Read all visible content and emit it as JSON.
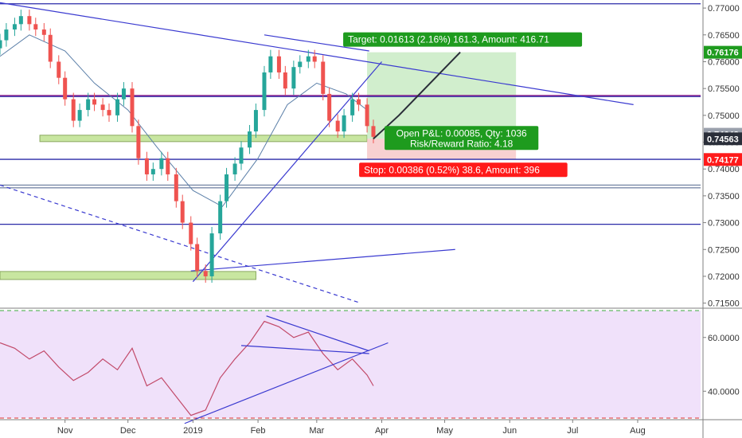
{
  "chart_data": [
    {
      "type": "candlestick",
      "title": "",
      "xlim": [
        "2018-10-01",
        "2019-08-31"
      ],
      "ylim": [
        0.7145,
        0.7715
      ],
      "price_axis_ticks": [
        "0.77000",
        "0.76500",
        "0.76000",
        "0.75500",
        "0.75000",
        "0.74500",
        "0.74000",
        "0.73500",
        "0.73000",
        "0.72500",
        "0.72000",
        "0.71500"
      ],
      "price_axis_values": [
        0.77,
        0.765,
        0.76,
        0.755,
        0.75,
        0.745,
        0.74,
        0.735,
        0.73,
        0.725,
        0.72,
        0.715
      ],
      "time_axis_ticks": [
        "Nov",
        "Dec",
        "2019",
        "Feb",
        "Mar",
        "Apr",
        "May",
        "Jun",
        "Jul",
        "Aug"
      ],
      "time_axis_dates": [
        "2018-11-01",
        "2018-12-01",
        "2019-01-01",
        "2019-02-01",
        "2019-03-01",
        "2019-04-01",
        "2019-05-01",
        "2019-06-01",
        "2019-07-01",
        "2019-08-01"
      ],
      "price_labels": [
        {
          "text": "0.76176",
          "value": 0.76176,
          "color": "#1e9b1e"
        },
        {
          "text": "0.74648",
          "value": 0.74648,
          "color": "#9aa0ac"
        },
        {
          "text": "0.74563",
          "value": 0.74563,
          "color": "#2a2e39"
        },
        {
          "text": "0.74177",
          "value": 0.74177,
          "color": "#ff1a1a"
        }
      ],
      "close_series": [
        [
          "2018-10-01",
          0.764
        ],
        [
          "2018-10-04",
          0.766
        ],
        [
          "2018-10-08",
          0.767
        ],
        [
          "2018-10-11",
          0.7685
        ],
        [
          "2018-10-15",
          0.767
        ],
        [
          "2018-10-18",
          0.766
        ],
        [
          "2018-10-22",
          0.765
        ],
        [
          "2018-10-25",
          0.76
        ],
        [
          "2018-10-29",
          0.757
        ],
        [
          "2018-11-01",
          0.753
        ],
        [
          "2018-11-05",
          0.749
        ],
        [
          "2018-11-08",
          0.751
        ],
        [
          "2018-11-12",
          0.753
        ],
        [
          "2018-11-15",
          0.752
        ],
        [
          "2018-11-19",
          0.751
        ],
        [
          "2018-11-22",
          0.75
        ],
        [
          "2018-11-26",
          0.753
        ],
        [
          "2018-11-29",
          0.755
        ],
        [
          "2018-12-03",
          0.748
        ],
        [
          "2018-12-06",
          0.742
        ],
        [
          "2018-12-10",
          0.739
        ],
        [
          "2018-12-13",
          0.74
        ],
        [
          "2018-12-17",
          0.742
        ],
        [
          "2018-12-20",
          0.739
        ],
        [
          "2018-12-24",
          0.734
        ],
        [
          "2018-12-27",
          0.73
        ],
        [
          "2018-12-31",
          0.726
        ],
        [
          "2019-01-03",
          0.721
        ],
        [
          "2019-01-07",
          0.72
        ],
        [
          "2019-01-10",
          0.728
        ],
        [
          "2019-01-14",
          0.734
        ],
        [
          "2019-01-17",
          0.739
        ],
        [
          "2019-01-21",
          0.741
        ],
        [
          "2019-01-24",
          0.744
        ],
        [
          "2019-01-28",
          0.747
        ],
        [
          "2019-01-31",
          0.751
        ],
        [
          "2019-02-04",
          0.758
        ],
        [
          "2019-02-07",
          0.761
        ],
        [
          "2019-02-11",
          0.758
        ],
        [
          "2019-02-14",
          0.755
        ],
        [
          "2019-02-18",
          0.759
        ],
        [
          "2019-02-21",
          0.76
        ],
        [
          "2019-02-25",
          0.761
        ],
        [
          "2019-02-28",
          0.76
        ],
        [
          "2019-03-04",
          0.754
        ],
        [
          "2019-03-07",
          0.749
        ],
        [
          "2019-03-11",
          0.747
        ],
        [
          "2019-03-14",
          0.75
        ],
        [
          "2019-03-18",
          0.753
        ],
        [
          "2019-03-21",
          0.752
        ],
        [
          "2019-03-25",
          0.748
        ],
        [
          "2019-03-28",
          0.746
        ]
      ],
      "moving_average": [
        [
          "2018-10-01",
          0.761
        ],
        [
          "2018-10-15",
          0.765
        ],
        [
          "2018-11-01",
          0.762
        ],
        [
          "2018-11-15",
          0.756
        ],
        [
          "2018-12-01",
          0.751
        ],
        [
          "2018-12-15",
          0.744
        ],
        [
          "2019-01-01",
          0.736
        ],
        [
          "2019-01-15",
          0.733
        ],
        [
          "2019-02-01",
          0.742
        ],
        [
          "2019-02-15",
          0.752
        ],
        [
          "2019-03-01",
          0.756
        ],
        [
          "2019-03-15",
          0.754
        ],
        [
          "2019-03-25",
          0.751
        ]
      ],
      "position": {
        "target_label": "Target: 0.01613 (2.16%) 161.3, Amount: 416.71",
        "open_label": "Open P&L: 0.00085, Qty: 1036",
        "ratio_label": "Risk/Reward Ratio: 4.18",
        "stop_label": "Stop: 0.00386 (0.52%) 38.6, Amount: 396",
        "entry": 0.74563,
        "target": 0.76176,
        "stop": 0.74177,
        "start": "2019-03-25",
        "end": "2019-06-04"
      },
      "horizontal_levels": [
        {
          "value": 0.7708,
          "color": "#2a2aa8"
        },
        {
          "value": 0.7535,
          "color": "#2a2aa8"
        },
        {
          "value": 0.7537,
          "color": "#8a1a8a"
        },
        {
          "value": 0.7418,
          "color": "#2a2aa8"
        },
        {
          "value": 0.737,
          "color": "#7a8aa8"
        },
        {
          "value": 0.7365,
          "color": "#7a8aa8"
        },
        {
          "value": 0.7297,
          "color": "#2a2aa8"
        }
      ],
      "trend_lines": [
        {
          "from": [
            "2018-10-01",
            0.771
          ],
          "to": [
            "2019-07-30",
            0.752
          ],
          "color": "#3a3ad0",
          "dashed": false
        },
        {
          "from": [
            "2019-01-01",
            0.719
          ],
          "to": [
            "2019-04-01",
            0.76
          ],
          "color": "#3a3ad0",
          "dashed": false
        },
        {
          "from": [
            "2018-12-31",
            0.721
          ],
          "to": [
            "2019-05-06",
            0.725
          ],
          "color": "#3a3ad0",
          "dashed": false
        },
        {
          "from": [
            "2019-02-04",
            0.765
          ],
          "to": [
            "2019-03-26",
            0.762
          ],
          "color": "#3a3ad0",
          "dashed": false
        },
        {
          "from": [
            "2018-10-01",
            0.737
          ],
          "to": [
            "2019-03-22",
            0.715
          ],
          "color": "#3a3ad0",
          "dashed": true
        }
      ],
      "zones": [
        {
          "from": "2018-10-01",
          "to": "2019-01-31",
          "low": 0.7197,
          "high": 0.7206,
          "color": "#c8e6a0"
        },
        {
          "from": "2018-10-20",
          "to": "2019-03-25",
          "low": 0.7454,
          "high": 0.746,
          "color": "#c8e6a0"
        }
      ]
    },
    {
      "type": "line",
      "title": "",
      "ylim": [
        30,
        70
      ],
      "axis_ticks": [
        "60.0000",
        "40.0000"
      ],
      "axis_values": [
        60,
        40
      ],
      "overbought": 70,
      "oversold": 30,
      "series_values": [
        [
          "2018-10-01",
          58
        ],
        [
          "2018-10-08",
          56
        ],
        [
          "2018-10-15",
          52
        ],
        [
          "2018-10-22",
          55
        ],
        [
          "2018-10-29",
          49
        ],
        [
          "2018-11-05",
          44
        ],
        [
          "2018-11-12",
          47
        ],
        [
          "2018-11-19",
          52
        ],
        [
          "2018-11-26",
          48
        ],
        [
          "2018-12-03",
          56
        ],
        [
          "2018-12-10",
          42
        ],
        [
          "2018-12-17",
          45
        ],
        [
          "2018-12-24",
          38
        ],
        [
          "2018-12-31",
          31
        ],
        [
          "2019-01-07",
          33
        ],
        [
          "2019-01-14",
          45
        ],
        [
          "2019-01-21",
          52
        ],
        [
          "2019-01-28",
          58
        ],
        [
          "2019-02-04",
          66
        ],
        [
          "2019-02-11",
          64
        ],
        [
          "2019-02-18",
          60
        ],
        [
          "2019-02-25",
          62
        ],
        [
          "2019-03-04",
          54
        ],
        [
          "2019-03-11",
          48
        ],
        [
          "2019-03-18",
          52
        ],
        [
          "2019-03-25",
          46
        ],
        [
          "2019-03-28",
          42
        ]
      ],
      "trend_lines": [
        {
          "from": [
            "2018-12-28",
            28
          ],
          "to": [
            "2019-04-04",
            58
          ]
        },
        {
          "from": [
            "2019-01-24",
            57
          ],
          "to": [
            "2019-03-26",
            54
          ]
        },
        {
          "from": [
            "2019-02-05",
            68
          ],
          "to": [
            "2019-03-26",
            55
          ]
        }
      ]
    }
  ]
}
